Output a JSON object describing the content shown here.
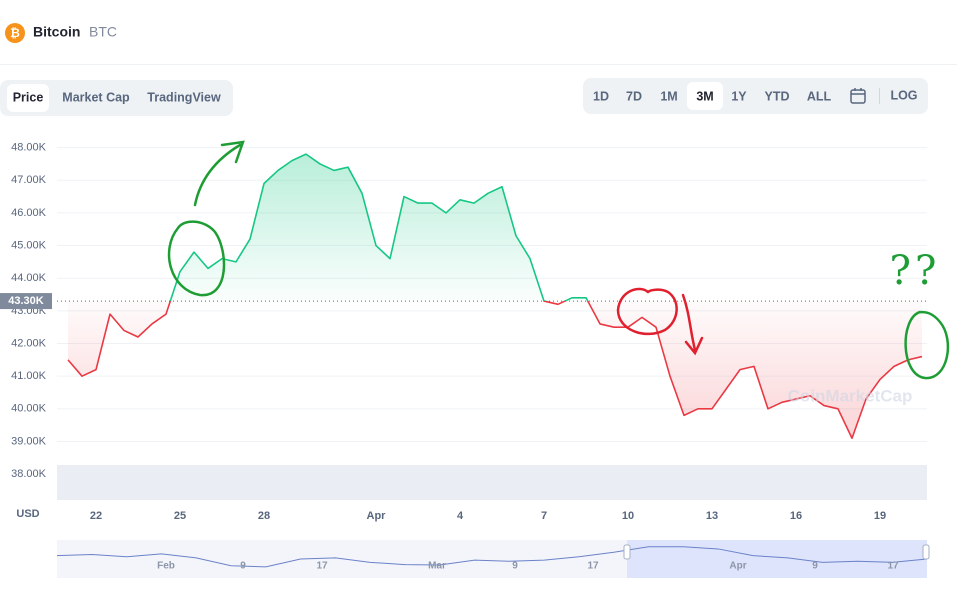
{
  "header": {
    "name": "Bitcoin",
    "symbol": "BTC",
    "logo": "₿"
  },
  "view_tabs": [
    "Price",
    "Market Cap",
    "TradingView"
  ],
  "active_view": 0,
  "range_tabs": [
    "1D",
    "7D",
    "1M",
    "3M",
    "1Y",
    "YTD",
    "ALL"
  ],
  "active_range": 3,
  "log_button": "LOG",
  "currency": "USD",
  "watermark": "CoinMarketCap",
  "annotation_text": "??",
  "chart_data": {
    "type": "line",
    "categories": [
      null,
      null,
      "22",
      null,
      null,
      null,
      null,
      null,
      "25",
      null,
      null,
      null,
      null,
      null,
      "28",
      null,
      null,
      null,
      null,
      null,
      null,
      null,
      "Apr",
      null,
      null,
      null,
      null,
      null,
      "4",
      null,
      null,
      null,
      null,
      null,
      "7",
      null,
      null,
      null,
      null,
      null,
      "10",
      null,
      null,
      null,
      null,
      null,
      "13",
      null,
      null,
      null,
      null,
      null,
      "16",
      null,
      null,
      null,
      null,
      null,
      "19",
      null,
      null,
      null
    ],
    "values": [
      41500,
      41000,
      41200,
      42900,
      42400,
      42200,
      42600,
      42900,
      44200,
      44800,
      44300,
      44600,
      44500,
      45200,
      46900,
      47300,
      47600,
      47800,
      47500,
      47300,
      47400,
      46600,
      45000,
      44600,
      46500,
      46300,
      46300,
      46000,
      46400,
      46300,
      46600,
      46800,
      45300,
      44600,
      43300,
      43200,
      43400,
      43400,
      42600,
      42500,
      42500,
      42800,
      42500,
      41000,
      39800,
      40000,
      40000,
      40600,
      41200,
      41300,
      40000,
      40200,
      40300,
      40400,
      40100,
      40000,
      39100,
      40300,
      40900,
      41300,
      41500,
      41600
    ],
    "baseline": {
      "value": 43300,
      "label": "43.30K"
    },
    "up_color": "#16c784",
    "down_color": "#ea3943",
    "ylim": [
      37300,
      48600
    ],
    "yticks": [
      {
        "value": 38000,
        "label": "38.00K"
      },
      {
        "value": 39000,
        "label": "39.00K"
      },
      {
        "value": 40000,
        "label": "40.00K"
      },
      {
        "value": 41000,
        "label": "41.00K"
      },
      {
        "value": 42000,
        "label": "42.00K"
      },
      {
        "value": 43000,
        "label": "43.00K"
      },
      {
        "value": 44000,
        "label": "44.00K"
      },
      {
        "value": 45000,
        "label": "45.00K"
      },
      {
        "value": 46000,
        "label": "46.00K"
      },
      {
        "value": 47000,
        "label": "47.00K"
      },
      {
        "value": 48000,
        "label": "48.00K"
      }
    ],
    "grid": true
  },
  "navigator": {
    "labels": [
      "Feb",
      "9",
      "17",
      "Mar",
      "9",
      "17",
      "Apr",
      "9",
      "17"
    ],
    "values": [
      43000,
      43500,
      42500,
      43800,
      42000,
      38500,
      38000,
      41500,
      42000,
      40000,
      39000,
      38800,
      41000,
      40500,
      41000,
      42500,
      44500,
      47000,
      47000,
      46000,
      43000,
      42000,
      40000,
      40500,
      40000,
      41500
    ],
    "ylim": [
      33000,
      50000
    ]
  }
}
